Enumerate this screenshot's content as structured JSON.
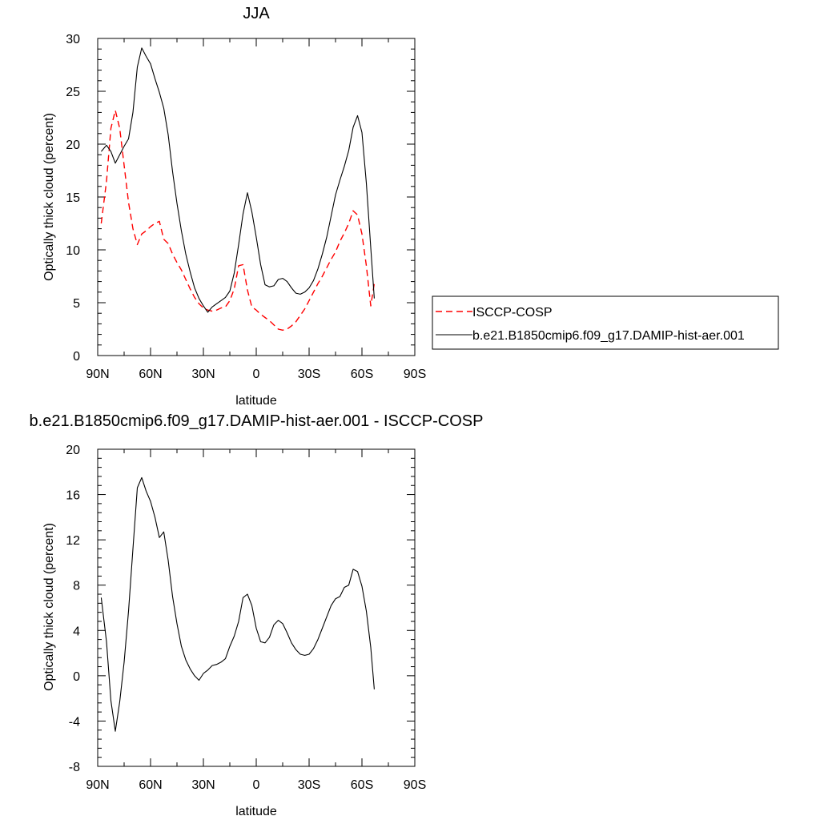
{
  "chart_data": [
    {
      "type": "line",
      "title": "JJA",
      "xlabel": "latitude",
      "ylabel": "Optically thick cloud (percent)",
      "xlim": [
        90,
        -90
      ],
      "ylim": [
        0,
        30
      ],
      "x_ticks": [
        90,
        60,
        30,
        0,
        -30,
        -60,
        -90
      ],
      "x_tick_labels": [
        "90N",
        "60N",
        "30N",
        "0",
        "30S",
        "60S",
        "90S"
      ],
      "y_ticks": [
        0,
        5,
        10,
        15,
        20,
        25,
        30
      ],
      "y_tick_labels": [
        "0",
        "5",
        "10",
        "15",
        "20",
        "25",
        "30"
      ],
      "legend_position": "right",
      "series": [
        {
          "name": "ISCCP-COSP",
          "color": "#ff0000",
          "dash": "dashed",
          "x": [
            88,
            85,
            82.5,
            80,
            77.5,
            75,
            72.5,
            70,
            67.5,
            65,
            62.5,
            60,
            57.5,
            55,
            52.5,
            50,
            47.5,
            45,
            42.5,
            40,
            37.5,
            35,
            32.5,
            30,
            27.5,
            25,
            22.5,
            20,
            17.5,
            15,
            12.5,
            10,
            7.5,
            5,
            2.5,
            0,
            -2.5,
            -5,
            -7.5,
            -10,
            -12.5,
            -15,
            -17.5,
            -20,
            -22.5,
            -25,
            -27.5,
            -30,
            -32.5,
            -35,
            -37.5,
            -40,
            -42.5,
            -45,
            -47.5,
            -50,
            -52.5,
            -55,
            -57.5,
            -60,
            -62.5,
            -65,
            -67
          ],
          "values": [
            12.5,
            16.5,
            21.5,
            23.2,
            21.5,
            18.0,
            14.5,
            12.0,
            10.5,
            11.5,
            11.8,
            12.2,
            12.5,
            12.7,
            11.0,
            10.6,
            9.6,
            8.8,
            8.1,
            7.2,
            6.3,
            5.5,
            4.9,
            4.5,
            4.3,
            4.2,
            4.3,
            4.5,
            4.6,
            5.2,
            6.3,
            8.5,
            8.6,
            6.2,
            4.6,
            4.3,
            3.9,
            3.6,
            3.3,
            2.9,
            2.5,
            2.4,
            2.5,
            2.8,
            3.2,
            3.8,
            4.4,
            5.2,
            6.0,
            6.8,
            7.5,
            8.3,
            9.1,
            9.8,
            10.8,
            11.6,
            12.5,
            13.7,
            13.3,
            11.5,
            8.5,
            4.7,
            6.8
          ]
        },
        {
          "name": "b.e21.B1850cmip6.f09_g17.DAMIP-hist-aer.001",
          "color": "#000000",
          "dash": "solid",
          "x": [
            88,
            85,
            82.5,
            80,
            77.5,
            75,
            72.5,
            70,
            67.5,
            65,
            62.5,
            60,
            57.5,
            55,
            52.5,
            50,
            47.5,
            45,
            42.5,
            40,
            37.5,
            35,
            32.5,
            30,
            27.5,
            25,
            22.5,
            20,
            17.5,
            15,
            12.5,
            10,
            7.5,
            5,
            2.5,
            0,
            -2.5,
            -5,
            -7.5,
            -10,
            -12.5,
            -15,
            -17.5,
            -20,
            -22.5,
            -25,
            -27.5,
            -30,
            -32.5,
            -35,
            -37.5,
            -40,
            -42.5,
            -45,
            -47.5,
            -50,
            -52.5,
            -55,
            -57.5,
            -60,
            -62.5,
            -65,
            -67
          ],
          "values": [
            19.3,
            19.9,
            19.3,
            18.2,
            19.0,
            19.8,
            20.5,
            23.0,
            27.3,
            29.1,
            28.3,
            27.6,
            26.2,
            24.9,
            23.4,
            20.9,
            17.4,
            14.4,
            11.8,
            9.6,
            7.9,
            6.4,
            5.4,
            4.7,
            4.1,
            4.6,
            4.9,
            5.2,
            5.5,
            6.1,
            7.8,
            10.5,
            13.4,
            15.4,
            13.6,
            11.2,
            8.6,
            6.7,
            6.5,
            6.6,
            7.2,
            7.3,
            7.0,
            6.4,
            5.9,
            5.8,
            6.0,
            6.4,
            7.1,
            8.2,
            9.6,
            11.2,
            13.2,
            15.2,
            16.6,
            17.9,
            19.4,
            21.6,
            22.7,
            21.1,
            16.3,
            10.2,
            5.4
          ]
        }
      ]
    },
    {
      "type": "line",
      "title": "b.e21.B1850cmip6.f09_g17.DAMIP-hist-aer.001 - ISCCP-COSP",
      "xlabel": "latitude",
      "ylabel": "Optically thick cloud (percent)",
      "xlim": [
        90,
        -90
      ],
      "ylim": [
        -8,
        20
      ],
      "x_ticks": [
        90,
        60,
        30,
        0,
        -30,
        -60,
        -90
      ],
      "x_tick_labels": [
        "90N",
        "60N",
        "30N",
        "0",
        "30S",
        "60S",
        "90S"
      ],
      "y_ticks": [
        -8,
        -4,
        0,
        4,
        8,
        12,
        16,
        20
      ],
      "y_tick_labels": [
        "-8",
        "-4",
        "0",
        "4",
        "8",
        "12",
        "16",
        "20"
      ],
      "series": [
        {
          "color": "#000000",
          "dash": "solid",
          "x": [
            88,
            85,
            82.5,
            80,
            77.5,
            75,
            72.5,
            70,
            67.5,
            65,
            62.5,
            60,
            57.5,
            55,
            52.5,
            50,
            47.5,
            45,
            42.5,
            40,
            37.5,
            35,
            32.5,
            30,
            27.5,
            25,
            22.5,
            20,
            17.5,
            15,
            12.5,
            10,
            7.5,
            5,
            2.5,
            0,
            -2.5,
            -5,
            -7.5,
            -10,
            -12.5,
            -15,
            -17.5,
            -20,
            -22.5,
            -25,
            -27.5,
            -30,
            -32.5,
            -35,
            -37.5,
            -40,
            -42.5,
            -45,
            -47.5,
            -50,
            -52.5,
            -55,
            -57.5,
            -60,
            -62.5,
            -65,
            -67
          ],
          "values": [
            6.9,
            3.0,
            -2.2,
            -4.9,
            -2.3,
            1.2,
            5.7,
            11.2,
            16.6,
            17.5,
            16.3,
            15.4,
            14.0,
            12.2,
            12.7,
            10.2,
            7.0,
            4.6,
            2.6,
            1.4,
            0.6,
            0.0,
            -0.4,
            0.2,
            0.5,
            0.9,
            1.0,
            1.2,
            1.5,
            2.6,
            3.5,
            4.8,
            6.9,
            7.2,
            6.2,
            4.2,
            3.0,
            2.9,
            3.4,
            4.5,
            4.9,
            4.6,
            3.8,
            2.9,
            2.3,
            1.9,
            1.8,
            1.9,
            2.4,
            3.2,
            4.2,
            5.2,
            6.2,
            6.8,
            7.0,
            7.8,
            8.0,
            9.4,
            9.2,
            7.9,
            5.7,
            2.5,
            -1.2
          ]
        }
      ]
    }
  ]
}
